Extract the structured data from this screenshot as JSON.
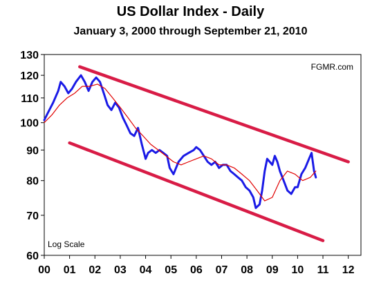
{
  "chart_data": {
    "type": "line",
    "title": "US Dollar Index - Daily",
    "subtitle": "January 3, 2000 through September 21, 2010",
    "source": "FGMR.com",
    "scale_note": "Log Scale",
    "y_scale": "log",
    "ylim": [
      60,
      130
    ],
    "xlim": [
      2000.0,
      2012.5
    ],
    "y_ticks": [
      60,
      70,
      80,
      90,
      100,
      110,
      120,
      130
    ],
    "x_tick_values": [
      2000,
      2001,
      2002,
      2003,
      2004,
      2005,
      2006,
      2007,
      2008,
      2009,
      2010,
      2011,
      2012
    ],
    "x_tick_labels": [
      "00",
      "01",
      "02",
      "03",
      "04",
      "05",
      "06",
      "07",
      "08",
      "09",
      "10",
      "11",
      "12"
    ],
    "grid": false,
    "colors": {
      "price": "#1a1ae6",
      "moving_average": "#e00000",
      "trendline": "#d81c46"
    },
    "series": [
      {
        "role": "price",
        "x": [
          2000.0,
          2000.15,
          2000.35,
          2000.55,
          2000.65,
          2000.8,
          2000.95,
          2001.1,
          2001.25,
          2001.45,
          2001.6,
          2001.75,
          2001.9,
          2002.05,
          2002.2,
          2002.35,
          2002.5,
          2002.65,
          2002.8,
          2002.95,
          2003.1,
          2003.25,
          2003.4,
          2003.55,
          2003.7,
          2003.85,
          2004.0,
          2004.1,
          2004.25,
          2004.4,
          2004.55,
          2004.7,
          2004.85,
          2004.95,
          2005.1,
          2005.3,
          2005.5,
          2005.7,
          2005.9,
          2006.0,
          2006.15,
          2006.3,
          2006.45,
          2006.6,
          2006.75,
          2006.9,
          2007.05,
          2007.2,
          2007.35,
          2007.5,
          2007.65,
          2007.8,
          2007.95,
          2008.1,
          2008.25,
          2008.35,
          2008.5,
          2008.6,
          2008.7,
          2008.8,
          2008.9,
          2009.0,
          2009.1,
          2009.2,
          2009.3,
          2009.45,
          2009.6,
          2009.75,
          2009.9,
          2010.0,
          2010.15,
          2010.3,
          2010.45,
          2010.55,
          2010.65,
          2010.72
        ],
        "values": [
          101,
          104,
          108,
          113,
          117,
          115,
          112,
          114,
          117,
          120,
          117,
          113,
          117,
          119,
          117,
          112,
          107,
          105,
          108,
          106,
          102,
          99,
          96,
          95,
          98,
          92,
          87,
          89,
          90,
          89,
          90,
          89,
          88,
          84,
          82,
          86,
          88,
          89,
          90,
          91,
          90,
          88,
          86,
          85,
          86,
          84,
          85,
          85,
          83,
          82,
          81,
          80,
          78,
          77,
          75,
          72,
          73,
          77,
          83,
          87,
          86,
          85,
          88,
          86,
          83,
          80,
          77,
          76,
          78,
          78,
          82,
          84,
          87,
          89,
          83,
          81
        ]
      },
      {
        "role": "moving_average",
        "x": [
          2000.0,
          2000.3,
          2000.6,
          2000.9,
          2001.2,
          2001.5,
          2001.8,
          2002.1,
          2002.4,
          2002.7,
          2003.0,
          2003.3,
          2003.6,
          2003.9,
          2004.2,
          2004.5,
          2004.8,
          2005.1,
          2005.4,
          2005.7,
          2006.0,
          2006.3,
          2006.6,
          2006.9,
          2007.2,
          2007.5,
          2007.8,
          2008.1,
          2008.4,
          2008.7,
          2009.0,
          2009.3,
          2009.6,
          2009.9,
          2010.2,
          2010.5,
          2010.72
        ],
        "values": [
          100,
          103,
          107,
          110,
          112,
          115,
          115,
          116,
          114,
          110,
          106,
          102,
          98,
          95,
          92,
          90,
          88,
          86,
          85,
          86,
          87,
          88,
          87,
          85,
          85,
          84,
          82,
          80,
          77,
          74,
          75,
          80,
          83,
          82,
          80,
          81,
          83
        ]
      }
    ],
    "trendlines": [
      {
        "role": "upper_channel",
        "x": [
          2001.4,
          2012.0
        ],
        "values": [
          124,
          86
        ]
      },
      {
        "role": "lower_channel",
        "x": [
          2001.0,
          2011.0
        ],
        "values": [
          92.5,
          63.5
        ]
      }
    ]
  }
}
